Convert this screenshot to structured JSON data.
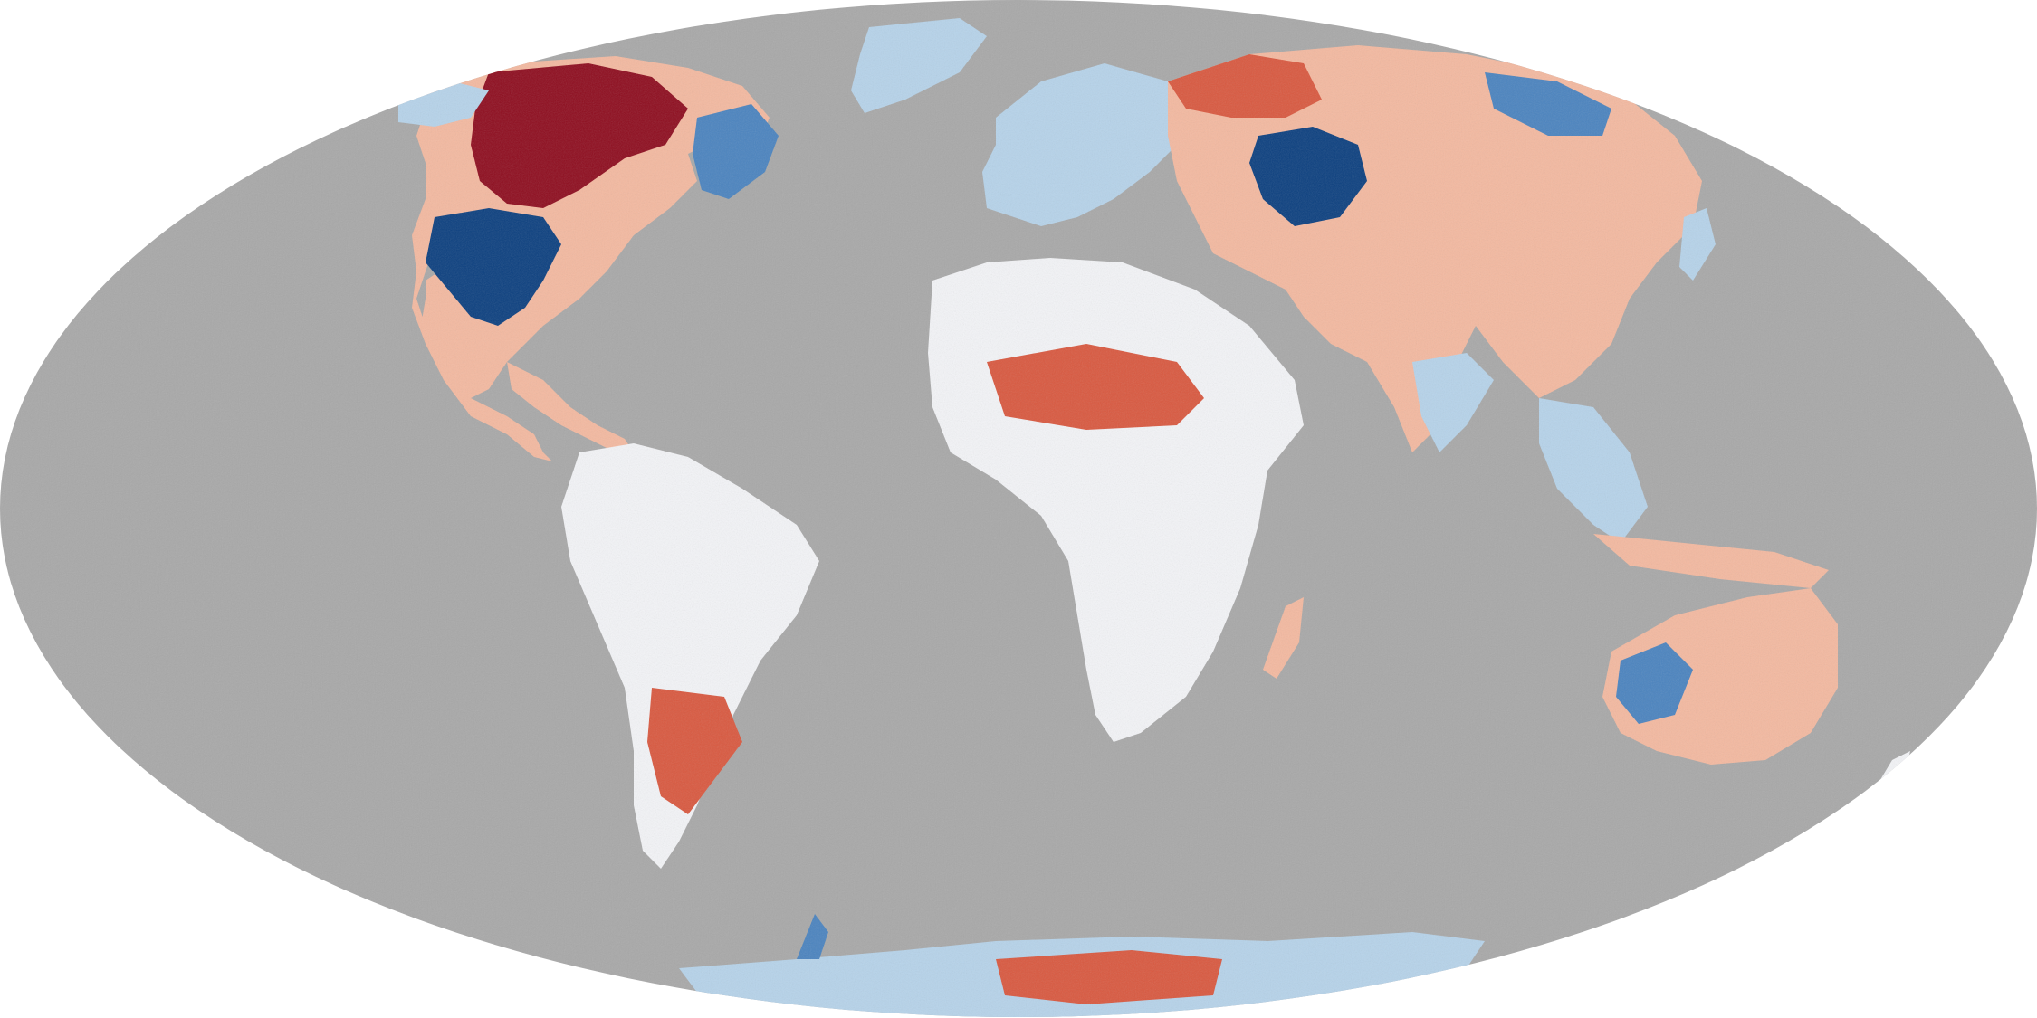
{
  "map": {
    "projection": "mollweide",
    "style": "land surface temperature anomaly",
    "colors": {
      "ocean": "#a8a8a8",
      "background": "#ffffff",
      "land_neutral": "#f3f4f7",
      "warm_light": "#f4b9a0",
      "warm": "#d9583f",
      "warm_strong": "#8e0c1e",
      "cool_light": "#b6d3ea",
      "cool": "#4a83bf",
      "cool_strong": "#0b3f7f"
    },
    "regions": [
      {
        "id": "north-america",
        "dominant": "mixed"
      },
      {
        "id": "canada-hudson",
        "dominant": "warm_strong"
      },
      {
        "id": "us-interior",
        "dominant": "cool_strong"
      },
      {
        "id": "greenland",
        "dominant": "cool_light"
      },
      {
        "id": "south-america",
        "dominant": "mixed"
      },
      {
        "id": "europe",
        "dominant": "mixed"
      },
      {
        "id": "africa",
        "dominant": "mixed"
      },
      {
        "id": "asia",
        "dominant": "mixed"
      },
      {
        "id": "central-asia",
        "dominant": "cool_strong"
      },
      {
        "id": "australia",
        "dominant": "mixed"
      },
      {
        "id": "antarctica",
        "dominant": "mixed"
      }
    ]
  }
}
